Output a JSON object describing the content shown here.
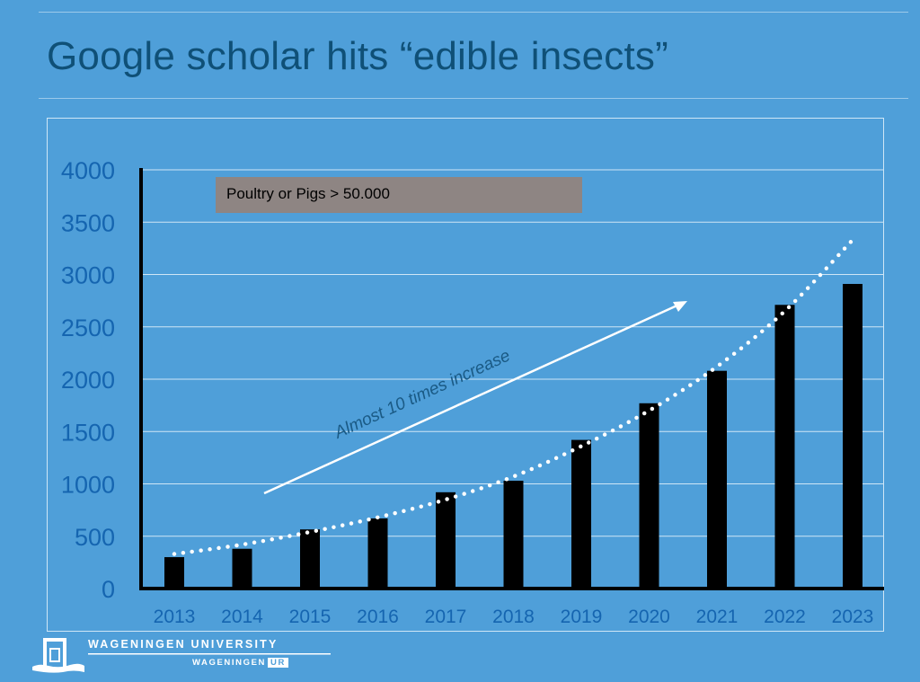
{
  "slide": {
    "title": "Google scholar hits “edible insects”"
  },
  "logo": {
    "name": "WAGENINGEN UNIVERSITY",
    "sub_name": "WAGENINGEN",
    "sub_badge": "UR"
  },
  "colors": {
    "background": "#4f9fd9",
    "title": "#0f5077",
    "axis_labels": "#1565b0",
    "bars": "#000000",
    "annotation_box": "#8e8583",
    "annotation_arrow": "#ffffff",
    "trendline": "#ffffff"
  },
  "chart_data": {
    "type": "bar",
    "categories": [
      "2013",
      "2014",
      "2015",
      "2016",
      "2017",
      "2018",
      "2019",
      "2020",
      "2021",
      "2022",
      "2023"
    ],
    "values": [
      300,
      380,
      565,
      670,
      920,
      1030,
      1420,
      1770,
      2080,
      2710,
      2910
    ],
    "ylim": [
      0,
      4000
    ],
    "yticks": [
      0,
      500,
      1000,
      1500,
      2000,
      2500,
      3000,
      3500,
      4000
    ],
    "grid": true,
    "trendline": {
      "style": "dotted",
      "values": [
        330,
        420,
        540,
        680,
        850,
        1070,
        1360,
        1700,
        2120,
        2650,
        3330
      ]
    },
    "annotations": [
      {
        "type": "box",
        "text": "Poultry or Pigs > 50.000"
      },
      {
        "type": "arrow",
        "text": "Almost 10 times increase"
      }
    ]
  }
}
